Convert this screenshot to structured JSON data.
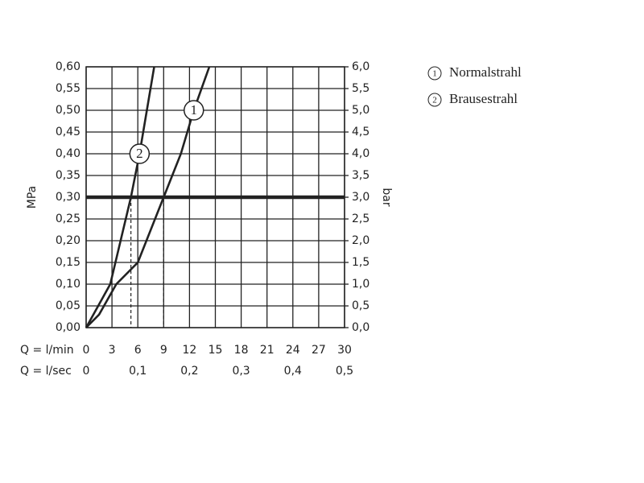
{
  "chart_data": {
    "type": "line",
    "y_label": "MPa",
    "y2_label": "bar",
    "x_label": "Q = l/min",
    "x2_label": "Q = l/sec",
    "xlim": [
      0,
      30
    ],
    "xticks": [
      0,
      3,
      6,
      9,
      12,
      15,
      18,
      21,
      24,
      27,
      30
    ],
    "x2lim": [
      0,
      0.5
    ],
    "x2ticks": [
      0,
      {
        "value": 0.1,
        "label": "0,1"
      },
      {
        "value": 0.2,
        "label": "0,2"
      },
      {
        "value": 0.3,
        "label": "0,3"
      },
      {
        "value": 0.4,
        "label": "0,4"
      },
      {
        "value": 0.5,
        "label": "0,5"
      }
    ],
    "ylim": [
      0,
      0.6
    ],
    "yticks": [
      {
        "value": 0,
        "label": "0,00"
      },
      {
        "value": 0.05,
        "label": "0,05"
      },
      {
        "value": 0.1,
        "label": "0,10"
      },
      {
        "value": 0.15,
        "label": "0,15"
      },
      {
        "value": 0.2,
        "label": "0,20"
      },
      {
        "value": 0.25,
        "label": "0,25"
      },
      {
        "value": 0.3,
        "label": "0,30"
      },
      {
        "value": 0.35,
        "label": "0,35"
      },
      {
        "value": 0.4,
        "label": "0,40"
      },
      {
        "value": 0.45,
        "label": "0,45"
      },
      {
        "value": 0.5,
        "label": "0,50"
      },
      {
        "value": 0.55,
        "label": "0,55"
      },
      {
        "value": 0.6,
        "label": "0,60"
      }
    ],
    "y2lim": [
      0,
      6
    ],
    "y2ticks": [
      {
        "value": 0,
        "label": "0,0"
      },
      {
        "value": 0.5,
        "label": "0,5"
      },
      {
        "value": 1,
        "label": "1,0"
      },
      {
        "value": 1.5,
        "label": "1,5"
      },
      {
        "value": 2,
        "label": "2,0"
      },
      {
        "value": 2.5,
        "label": "2,5"
      },
      {
        "value": 3,
        "label": "3,0"
      },
      {
        "value": 3.5,
        "label": "3,5"
      },
      {
        "value": 4,
        "label": "4,0"
      },
      {
        "value": 4.5,
        "label": "4,5"
      },
      {
        "value": 5,
        "label": "5,0"
      },
      {
        "value": 5.5,
        "label": "5,5"
      },
      {
        "value": 6,
        "label": "6,0"
      }
    ],
    "grid": true,
    "reference_y": 0.3,
    "drop_x": [
      5.2,
      9
    ],
    "series": [
      {
        "name": "Normalstrahl",
        "label": "1",
        "color": "#222222",
        "x": [
          0,
          1.5,
          3.5,
          6,
          9,
          11,
          12.5,
          14.3
        ],
        "values": [
          0,
          0.03,
          0.1,
          0.15,
          0.3,
          0.4,
          0.5,
          0.6
        ]
      },
      {
        "name": "Brausestrahl",
        "label": "2",
        "color": "#222222",
        "x": [
          0,
          2.8,
          4,
          5.2,
          6.2,
          7.9
        ],
        "values": [
          0,
          0.1,
          0.2,
          0.3,
          0.4,
          0.6
        ]
      }
    ]
  }
}
